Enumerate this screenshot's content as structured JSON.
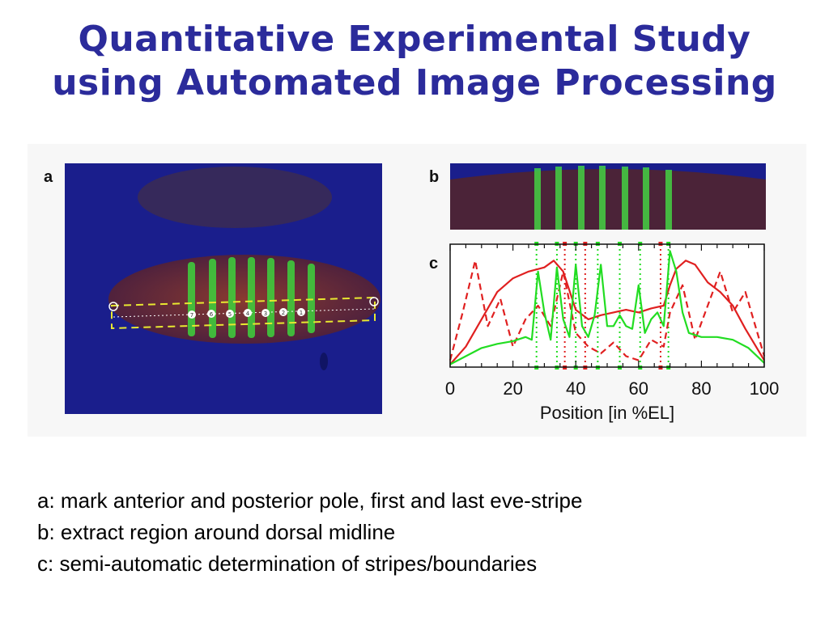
{
  "slide": {
    "title_line1": "Quantitative Experimental Study",
    "title_line2": "using Automated Image Processing"
  },
  "figure": {
    "panel_a_label": "a",
    "panel_b_label": "b",
    "panel_c_label": "c",
    "panel_a_markers": [
      "1",
      "2",
      "3",
      "4",
      "5",
      "6",
      "7"
    ]
  },
  "captions": [
    "a: mark anterior and posterior pole, first and last eve-stripe",
    "b: extract region around dorsal midline",
    "c: semi-automatic determination of stripes/boundaries"
  ],
  "colors": {
    "title": "#2b2b9b",
    "red_series": "#e02020",
    "green_series": "#22dd22",
    "embryo_background": "#1a1e8c"
  },
  "chart_data": {
    "type": "line",
    "xlabel": "Position [in %EL]",
    "ylabel": "",
    "xlim": [
      0,
      100
    ],
    "x_ticks": [
      0,
      20,
      40,
      60,
      80,
      100
    ],
    "y_ticks_shown": false,
    "series": [
      {
        "color": "#e02020",
        "style": "solid",
        "x": [
          0,
          5,
          10,
          15,
          20,
          25,
          30,
          33,
          36,
          40,
          44,
          48,
          52,
          56,
          60,
          64,
          68,
          70,
          72,
          75,
          78,
          82,
          86,
          90,
          94,
          100
        ],
        "y": [
          2,
          15,
          35,
          55,
          65,
          70,
          73,
          78,
          70,
          42,
          35,
          38,
          40,
          42,
          40,
          43,
          45,
          60,
          72,
          78,
          75,
          62,
          55,
          45,
          28,
          5
        ]
      },
      {
        "color": "#e02020",
        "style": "dashed",
        "x": [
          0,
          4,
          8,
          12,
          16,
          20,
          24,
          28,
          32,
          36,
          40,
          44,
          48,
          52,
          56,
          60,
          64,
          68,
          70,
          74,
          78,
          82,
          86,
          90,
          94,
          100
        ],
        "y": [
          5,
          40,
          78,
          30,
          50,
          15,
          35,
          45,
          30,
          70,
          25,
          15,
          10,
          18,
          8,
          5,
          20,
          15,
          40,
          60,
          20,
          45,
          70,
          40,
          55,
          8
        ]
      },
      {
        "color": "#22dd22",
        "style": "solid",
        "x": [
          0,
          5,
          10,
          15,
          20,
          24,
          26,
          28,
          30,
          32,
          34,
          36,
          38,
          40,
          42,
          44,
          46,
          48,
          50,
          52,
          54,
          56,
          58,
          60,
          62,
          64,
          66,
          68,
          70,
          72,
          74,
          76,
          80,
          85,
          90,
          95,
          100
        ],
        "y": [
          2,
          8,
          14,
          17,
          19,
          22,
          20,
          70,
          40,
          20,
          73,
          35,
          22,
          75,
          30,
          22,
          38,
          75,
          30,
          30,
          38,
          30,
          28,
          60,
          25,
          35,
          40,
          30,
          85,
          70,
          40,
          25,
          22,
          22,
          20,
          14,
          3
        ]
      }
    ],
    "vertical_markers": [
      {
        "x": 27.5,
        "color": "#22dd22"
      },
      {
        "x": 34,
        "color": "#22dd22"
      },
      {
        "x": 36.5,
        "color": "#e02020"
      },
      {
        "x": 40,
        "color": "#22dd22"
      },
      {
        "x": 43,
        "color": "#e02020"
      },
      {
        "x": 47,
        "color": "#22dd22"
      },
      {
        "x": 54,
        "color": "#22dd22"
      },
      {
        "x": 60.5,
        "color": "#22dd22"
      },
      {
        "x": 67,
        "color": "#e02020"
      },
      {
        "x": 69.5,
        "color": "#22dd22"
      }
    ],
    "grid": false
  }
}
